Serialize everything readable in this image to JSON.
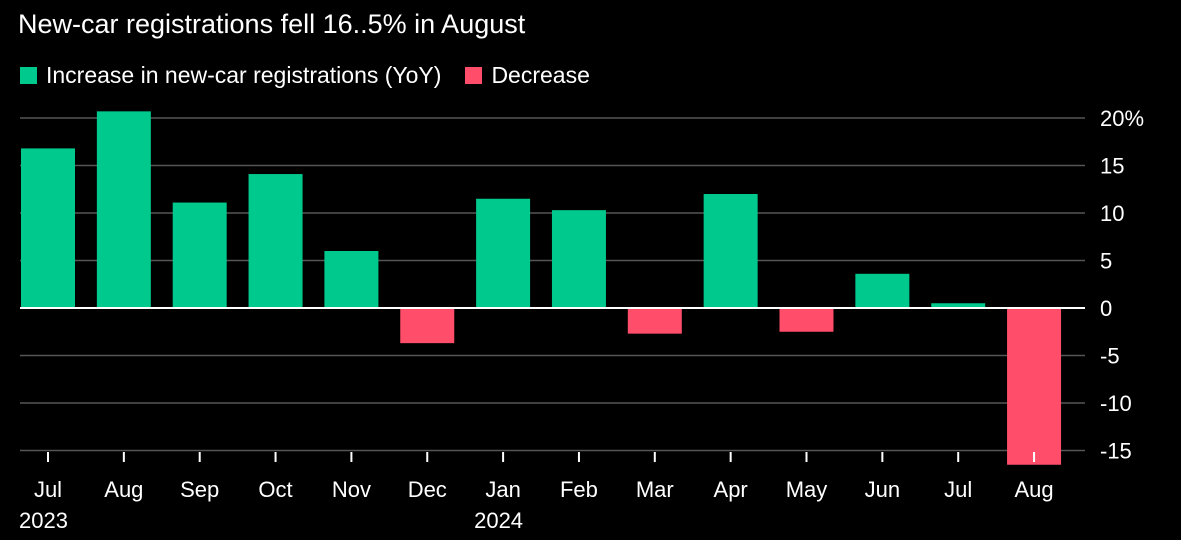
{
  "subtitle": "New-car registrations fell 16..5% in August",
  "legend": {
    "increase_label": "Increase in new-car registrations (YoY)",
    "decrease_label": "Decrease"
  },
  "colors": {
    "increase": "#00c98d",
    "decrease": "#ff4d6a",
    "background": "#000000",
    "grid": "#555555",
    "zero_line": "#ffffff"
  },
  "chart_data": {
    "type": "bar",
    "categories": [
      "Jul",
      "Aug",
      "Sep",
      "Oct",
      "Nov",
      "Dec",
      "Jan",
      "Feb",
      "Mar",
      "Apr",
      "May",
      "Jun",
      "Jul",
      "Aug"
    ],
    "year_labels": [
      {
        "index": 0,
        "label": "2023"
      },
      {
        "index": 6,
        "label": "2024"
      }
    ],
    "values": [
      16.8,
      20.7,
      11.1,
      14.1,
      6.0,
      -3.7,
      11.5,
      10.3,
      -2.7,
      12.0,
      -2.5,
      3.6,
      0.5,
      -16.5
    ],
    "y_ticks": [
      20,
      15,
      10,
      5,
      0,
      -5,
      -10,
      -15
    ],
    "y_tick_labels": [
      "20%",
      "15",
      "10",
      "5",
      "0",
      "-5",
      "-10",
      "-15"
    ],
    "ylim": [
      -16.5,
      20.7
    ],
    "grid": true,
    "legend_position": "top-left"
  }
}
